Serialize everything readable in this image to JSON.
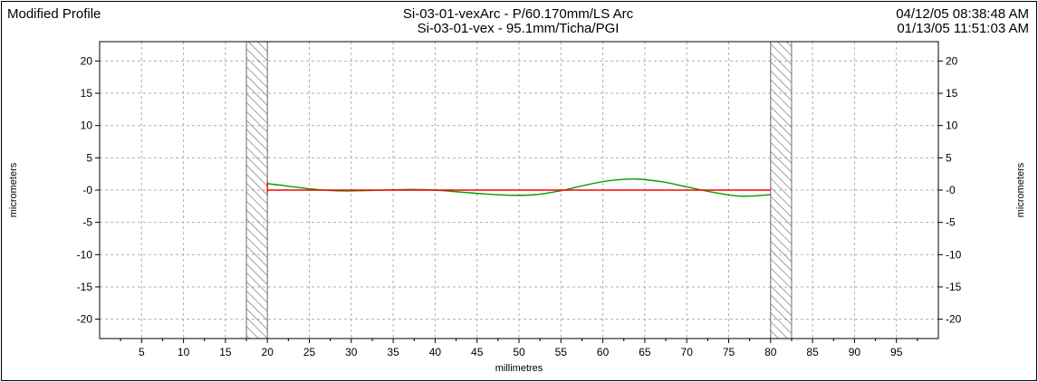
{
  "header": {
    "left_title": "Modified Profile",
    "center_line1": "Si-03-01-vexArc - P/60.170mm/LS Arc",
    "center_line2": "Si-03-01-vex - 95.1mm/Ticha/PGI",
    "right_line1": "04/12/05 08:38:48 AM",
    "right_line2": "01/13/05 11:51:03 AM"
  },
  "colors": {
    "profile": "#00a000",
    "reference": "#ff0000",
    "grid": "#b0b0b0",
    "hatch": "#707070"
  },
  "chart_data": {
    "type": "line",
    "xlabel": "millimetres",
    "ylabel_left": "micrometers",
    "ylabel_right": "micrometers",
    "xlim": [
      0,
      100
    ],
    "ylim": [
      -23,
      23
    ],
    "x_ticks": [
      5,
      10,
      15,
      20,
      25,
      30,
      35,
      40,
      45,
      50,
      55,
      60,
      65,
      70,
      75,
      80,
      85,
      90,
      95
    ],
    "x_tick_labels": [
      "5",
      "10",
      "15",
      "20",
      "25",
      "30",
      "35",
      "40",
      "45",
      "50",
      "55",
      "60",
      "65",
      "70",
      "75",
      "80",
      "85",
      "90",
      "95"
    ],
    "y_ticks": [
      20,
      15,
      10,
      5,
      0,
      -5,
      -10,
      -15,
      -20
    ],
    "y_tick_labels": [
      "20",
      "15",
      "10",
      "5",
      "-0",
      "-5",
      "-10",
      "-15",
      "-20"
    ],
    "grid": true,
    "excluded_regions": [
      [
        17.5,
        20
      ],
      [
        80,
        82.5
      ]
    ],
    "series": [
      {
        "role": "profile",
        "x": [
          20,
          22,
          25,
          28,
          31,
          34,
          37,
          40,
          43,
          46,
          49,
          52,
          55,
          58,
          61,
          64,
          67,
          70,
          73,
          76,
          78,
          80
        ],
        "y": [
          1.0,
          0.7,
          0.2,
          -0.1,
          -0.1,
          0.0,
          0.1,
          0.0,
          -0.3,
          -0.6,
          -0.8,
          -0.7,
          -0.1,
          0.8,
          1.5,
          1.7,
          1.3,
          0.5,
          -0.3,
          -0.9,
          -0.9,
          -0.7
        ]
      },
      {
        "role": "reference",
        "x": [
          20,
          80
        ],
        "y": [
          0,
          0
        ]
      }
    ]
  }
}
